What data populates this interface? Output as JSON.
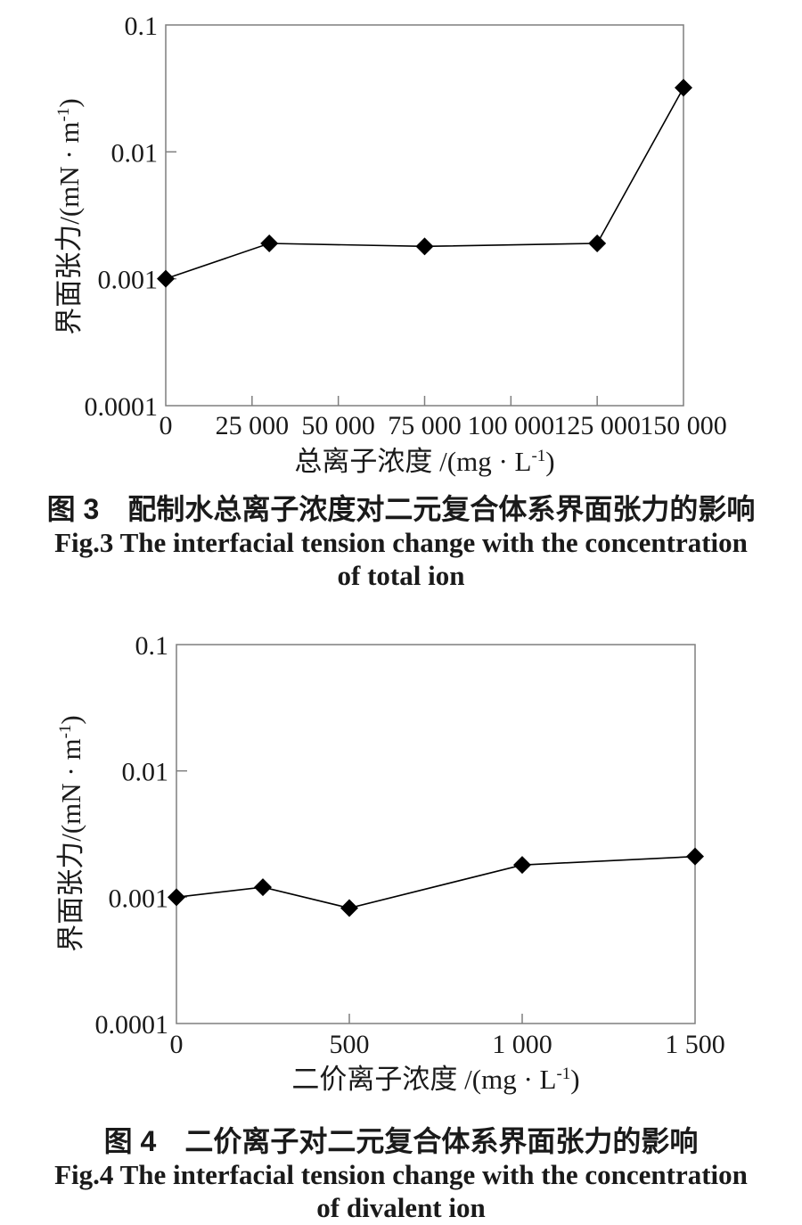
{
  "colors": {
    "frame": "#7f7f7f",
    "data_line": "#000000",
    "marker": "#000000",
    "text": "#1a1a1a"
  },
  "chart_data": [
    {
      "type": "line",
      "yscale": "log",
      "marker": "diamond",
      "x": [
        0,
        30000,
        75000,
        125000,
        150000
      ],
      "y": [
        0.001,
        0.0019,
        0.0018,
        0.0019,
        0.032
      ],
      "xlim": [
        0,
        150000
      ],
      "ylim": [
        0.0001,
        0.1
      ],
      "xticks": {
        "values": [
          0,
          25000,
          50000,
          75000,
          100000,
          125000,
          150000
        ],
        "labels": [
          "0",
          "25 000",
          "50 000",
          "75 000",
          "100 000",
          "125 000",
          "150 000"
        ]
      },
      "yticks": {
        "values": [
          0.1,
          0.01,
          0.001,
          0.0001
        ],
        "labels": [
          "0.1",
          "0.01",
          "0.001",
          "0.0001"
        ]
      },
      "xlabel": {
        "text": "总离子浓度 /(mg · L",
        "sup": "-1",
        "close": ")"
      },
      "ylabel": {
        "text": "界面张力/(mN · m",
        "sup": "-1",
        "close": ")"
      },
      "caption_zh": "图 3　配制水总离子浓度对二元复合体系界面张力的影响",
      "caption_en": [
        "Fig.3 The interfacial tension change with the concentration",
        "of total ion"
      ]
    },
    {
      "type": "line",
      "yscale": "log",
      "marker": "diamond",
      "x": [
        0,
        250,
        500,
        1000,
        1500
      ],
      "y": [
        0.001,
        0.0012,
        0.00082,
        0.0018,
        0.0021
      ],
      "xlim": [
        0,
        1500
      ],
      "ylim": [
        0.0001,
        0.1
      ],
      "xticks": {
        "values": [
          0,
          500,
          1000,
          1500
        ],
        "labels": [
          "0",
          "500",
          "1 000",
          "1 500"
        ]
      },
      "yticks": {
        "values": [
          0.1,
          0.01,
          0.001,
          0.0001
        ],
        "labels": [
          "0.1",
          "0.01",
          "0.001",
          "0.0001"
        ]
      },
      "xlabel": {
        "text": "二价离子浓度 /(mg · L",
        "sup": "-1",
        "close": ")"
      },
      "ylabel": {
        "text": "界面张力/(mN · m",
        "sup": "-1",
        "close": ")"
      },
      "caption_zh": "图 4　二价离子对二元复合体系界面张力的影响",
      "caption_en": [
        "Fig.4 The interfacial tension change with the concentration",
        "of divalent ion"
      ]
    }
  ]
}
